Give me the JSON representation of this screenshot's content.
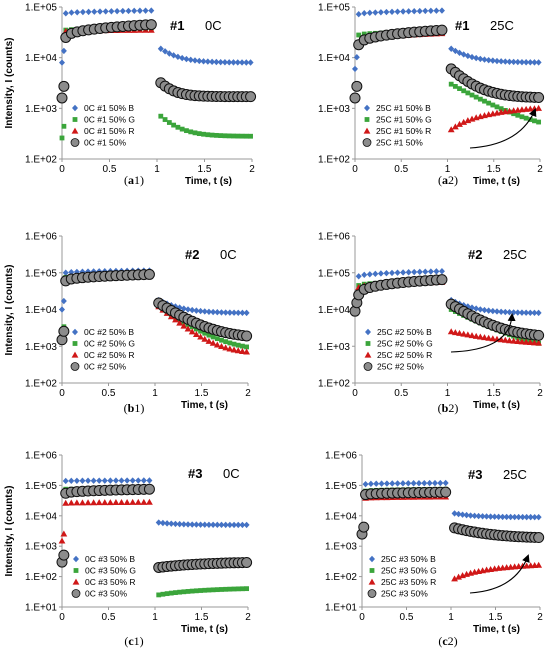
{
  "colors": {
    "B": "#4472C4",
    "G": "#3BA53B",
    "R": "#D01818",
    "SUM": "#8C8C8C",
    "SUM_stroke": "#111111"
  },
  "chart_data": [
    {
      "type": "scatter",
      "id": "a1",
      "caption_main": "a",
      "caption_num": "1",
      "title": "#1",
      "condition": "0C",
      "xlabel": "Time, t (s)",
      "ylabel": "Intensity, I (counts)",
      "yscale": "log",
      "ylim_exp": [
        2,
        5
      ],
      "xlim": [
        0,
        2
      ],
      "x_ticks": [
        "0",
        "0.5",
        "1",
        "1.5",
        "2"
      ],
      "y_ticks": [
        "1.E+02",
        "1.E+03",
        "1.E+04",
        "1.E+05"
      ],
      "legend": [
        "0C #1 50% B",
        "0C #1 50% G",
        "0C #1 50% R",
        "0C #1 50%"
      ],
      "series": [
        {
          "name": "0C #1 50% B",
          "color": "B",
          "marker": "diamond",
          "level": [
            75000,
            85000
          ],
          "edge": 8000,
          "decay": [
            15000,
            8000,
            6.0
          ]
        },
        {
          "name": "0C #1 50% G",
          "color": "G",
          "marker": "square",
          "level": [
            35000,
            38000
          ],
          "edge": 260,
          "decay": [
            700,
            280,
            6.0
          ]
        },
        {
          "name": "0C #1 50% R",
          "color": "R",
          "marker": "triangle",
          "level": [
            33000,
            35000
          ],
          "edge": 0,
          "decay": null
        },
        {
          "name": "0C #1 50%",
          "color": "SUM",
          "marker": "circle",
          "level": [
            25000,
            45000
          ],
          "edge": 1600,
          "decay": [
            3200,
            1700,
            8.0
          ]
        }
      ]
    },
    {
      "type": "scatter",
      "id": "a2",
      "caption_main": "a",
      "caption_num": "2",
      "title": "#1",
      "condition": "25C",
      "xlabel": "Time, t (s)",
      "ylabel": "",
      "yscale": "log",
      "ylim_exp": [
        2,
        5
      ],
      "xlim": [
        0,
        2
      ],
      "x_ticks": [
        "0",
        "0.5",
        "1",
        "1.5",
        "2"
      ],
      "y_ticks": [
        "1.E+02",
        "1.E+03",
        "1.E+04",
        "1.E+05"
      ],
      "legend": [
        "25C #1 50% B",
        "25C #1 50% G",
        "25C #1 50% R",
        "25C #1 50%"
      ],
      "series": [
        {
          "name": "25C #1 50% B",
          "color": "B",
          "marker": "diamond",
          "level": [
            72000,
            85000
          ],
          "edge": 6000,
          "decay": [
            15000,
            8000,
            5.0
          ]
        },
        {
          "name": "25C #1 50% G",
          "color": "G",
          "marker": "square",
          "level": [
            28000,
            33000
          ],
          "edge": 0,
          "decay": [
            3000,
            280,
            2.5
          ]
        },
        {
          "name": "25C #1 50% R",
          "color": "R",
          "marker": "triangle",
          "level": [
            20000,
            30000
          ],
          "edge": 0,
          "decay": [
            380,
            1200,
            1.5
          ]
        },
        {
          "name": "25C #1 50%",
          "color": "SUM",
          "marker": "circle",
          "level": [
            18000,
            35000
          ],
          "edge": 1600,
          "decay": [
            6000,
            1600,
            5.0
          ]
        }
      ]
    },
    {
      "type": "scatter",
      "id": "b1",
      "caption_main": "b",
      "caption_num": "1",
      "title": "#2",
      "condition": "0C",
      "xlabel": "Time, t (s)",
      "ylabel": "Intensity, I (counts)",
      "yscale": "log",
      "ylim_exp": [
        2,
        6
      ],
      "xlim": [
        0,
        2
      ],
      "x_ticks": [
        "0",
        "0.5",
        "1",
        "1.5",
        "2"
      ],
      "y_ticks": [
        "1.E+02",
        "1.E+03",
        "1.E+04",
        "1.E+05",
        "1.E+06"
      ],
      "legend": [
        "0C #2 50% B",
        "0C #2 50% G",
        "0C #2 50% R",
        "0C #2 50%"
      ],
      "series": [
        {
          "name": "0C #2 50% B",
          "color": "B",
          "marker": "diamond",
          "level": [
            100000,
            115000
          ],
          "edge": 10000,
          "decay": [
            18000,
            8000,
            5.0
          ]
        },
        {
          "name": "0C #2 50% G",
          "color": "G",
          "marker": "square",
          "level": [
            75000,
            90000
          ],
          "edge": 2000,
          "decay": [
            12000,
            700,
            4.0
          ]
        },
        {
          "name": "0C #2 50% R",
          "color": "R",
          "marker": "triangle",
          "level": [
            70000,
            85000
          ],
          "edge": 0,
          "decay": [
            12000,
            600,
            5.0
          ]
        },
        {
          "name": "0C #2 50%",
          "color": "SUM",
          "marker": "circle",
          "level": [
            60000,
            90000
          ],
          "edge": 1500,
          "decay": [
            15000,
            1600,
            4.0
          ]
        }
      ]
    },
    {
      "type": "scatter",
      "id": "b2",
      "caption_main": "b",
      "caption_num": "2",
      "title": "#2",
      "condition": "25C",
      "xlabel": "Time, t (s)",
      "ylabel": "",
      "yscale": "log",
      "ylim_exp": [
        2,
        6
      ],
      "xlim": [
        0,
        2
      ],
      "x_ticks": [
        "0",
        "0.5",
        "1",
        "1.5",
        "2"
      ],
      "y_ticks": [
        "1.E+02",
        "1.E+03",
        "1.E+04",
        "1.E+05",
        "1.E+06"
      ],
      "legend": [
        "25C #2 50% B",
        "25C #2 50% G",
        "25C #2 50% R",
        "25C #2 50%"
      ],
      "series": [
        {
          "name": "25C #2 50% B",
          "color": "B",
          "marker": "diamond",
          "level": [
            80000,
            110000
          ],
          "edge": 9000,
          "decay": [
            18000,
            8000,
            5.0
          ]
        },
        {
          "name": "25C #2 50% G",
          "color": "G",
          "marker": "square",
          "level": [
            45000,
            60000
          ],
          "edge": 0,
          "decay": [
            10000,
            650,
            3.0
          ]
        },
        {
          "name": "25C #2 50% R",
          "color": "R",
          "marker": "triangle",
          "level": [
            40000,
            55000
          ],
          "edge": 0,
          "decay": [
            2500,
            1000,
            2.0
          ]
        },
        {
          "name": "25C #2 50%",
          "color": "SUM",
          "marker": "circle",
          "level": [
            25000,
            65000
          ],
          "edge": 9000,
          "decay": [
            14000,
            1700,
            4.0
          ]
        }
      ]
    },
    {
      "type": "scatter",
      "id": "c1",
      "caption_main": "c",
      "caption_num": "1",
      "title": "#3",
      "condition": "0C",
      "xlabel": "Time, t (s)",
      "ylabel": "Intensity, I (counts)",
      "yscale": "log",
      "ylim_exp": [
        1,
        6
      ],
      "xlim": [
        0,
        2
      ],
      "x_ticks": [
        "0",
        "0.5",
        "1",
        "1.5",
        "2"
      ],
      "y_ticks": [
        "1.E+01",
        "1.E+02",
        "1.E+03",
        "1.E+04",
        "1.E+05",
        "1.E+06"
      ],
      "legend": [
        "0C #3 50% B",
        "0C #3 50% G",
        "0C #3 50% R",
        "0C #3 50%"
      ],
      "series": [
        {
          "name": "0C #3 50% B",
          "color": "B",
          "marker": "diamond",
          "level": [
            140000,
            145000
          ],
          "edge": 0,
          "decay": [
            6000,
            5000,
            5.0
          ]
        },
        {
          "name": "0C #3 50% G",
          "color": "G",
          "marker": "square",
          "level": [
            75000,
            75000
          ],
          "edge": 0,
          "decay": [
            25,
            45,
            1.5
          ]
        },
        {
          "name": "0C #3 50% R",
          "color": "R",
          "marker": "triangle",
          "level": [
            26000,
            28000
          ],
          "edge": 1500,
          "decay": null
        },
        {
          "name": "0C #3 50%",
          "color": "SUM",
          "marker": "circle",
          "level": [
            55000,
            75000
          ],
          "edge": 300,
          "decay": [
            200,
            320,
            1.5
          ]
        }
      ]
    },
    {
      "type": "scatter",
      "id": "c2",
      "caption_main": "c",
      "caption_num": "2",
      "title": "#3",
      "condition": "25C",
      "xlabel": "Time, t (s)",
      "ylabel": "",
      "yscale": "log",
      "ylim_exp": [
        1,
        6
      ],
      "xlim": [
        0,
        2
      ],
      "x_ticks": [
        "0",
        "0.5",
        "1",
        "1.5",
        "2"
      ],
      "y_ticks": [
        "1.E+01",
        "1.E+02",
        "1.E+03",
        "1.E+04",
        "1.E+05",
        "1.E+06"
      ],
      "legend": [
        "25C #3 50% B",
        "25C #3 50% G",
        "25C #3 50% R",
        "25C #3 50%"
      ],
      "series": [
        {
          "name": "25C #3 50% B",
          "color": "B",
          "marker": "diamond",
          "level": [
            110000,
            120000
          ],
          "edge": 0,
          "decay": [
            12000,
            9000,
            5.0
          ]
        },
        {
          "name": "25C #3 50% G",
          "color": "G",
          "marker": "square",
          "level": [
            65000,
            75000
          ],
          "edge": 0,
          "decay": null
        },
        {
          "name": "25C #3 50% R",
          "color": "R",
          "marker": "triangle",
          "level": [
            38000,
            42000
          ],
          "edge": 0,
          "decay": [
            85,
            300,
            1.3
          ]
        },
        {
          "name": "25C #3 50%",
          "color": "SUM",
          "marker": "circle",
          "level": [
            50000,
            60000
          ],
          "edge": 2500,
          "decay": [
            4000,
            1800,
            3.0
          ]
        }
      ]
    }
  ]
}
